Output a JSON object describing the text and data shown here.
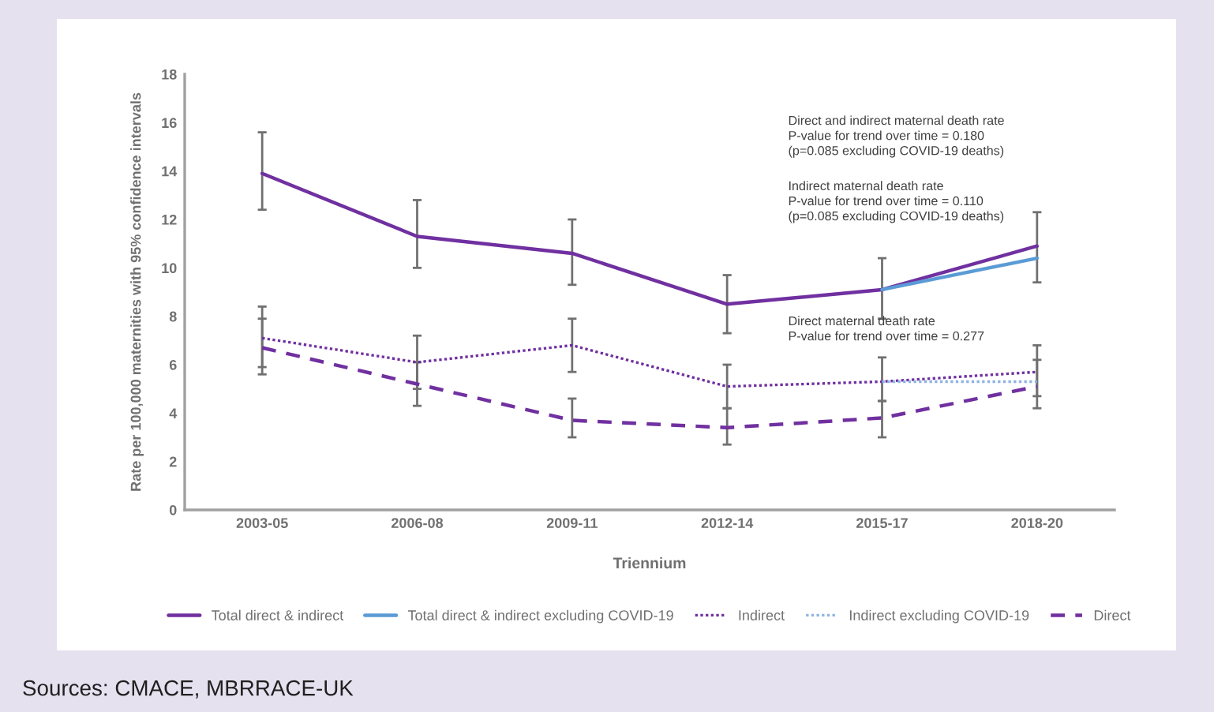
{
  "chart_data": {
    "type": "line",
    "xlabel": "Triennium",
    "ylabel": "Rate per 100,000 maternities with 95% confidence intervals",
    "categories": [
      "2003-05",
      "2006-08",
      "2009-11",
      "2012-14",
      "2015-17",
      "2018-20"
    ],
    "series": [
      {
        "name": "Total direct & indirect",
        "color": "#7030a0",
        "line_style": "solid",
        "values": [
          13.9,
          11.3,
          10.6,
          8.5,
          9.1,
          10.9
        ],
        "errors": [
          [
            12.4,
            15.6
          ],
          [
            10.0,
            12.8
          ],
          [
            9.3,
            12.0
          ],
          [
            7.3,
            9.7
          ],
          [
            7.9,
            10.4
          ],
          [
            9.4,
            12.3
          ]
        ]
      },
      {
        "name": "Total direct & indirect excluding COVID-19",
        "color": "#5b9bd5",
        "line_style": "solid",
        "values": [
          null,
          null,
          null,
          null,
          9.1,
          10.4
        ]
      },
      {
        "name": "Indirect",
        "color": "#7030a0",
        "line_style": "dotted",
        "values": [
          7.1,
          6.1,
          6.8,
          5.1,
          5.3,
          5.7
        ],
        "errors": [
          [
            5.9,
            8.4
          ],
          [
            5.0,
            7.2
          ],
          [
            5.7,
            7.9
          ],
          [
            4.2,
            6.0
          ],
          [
            4.5,
            6.3
          ],
          [
            4.7,
            6.8
          ]
        ]
      },
      {
        "name": "Indirect excluding COVID-19",
        "color": "#8eb4e3",
        "line_style": "dotted",
        "values": [
          null,
          null,
          null,
          null,
          5.3,
          5.3
        ]
      },
      {
        "name": "Direct",
        "color": "#7030a0",
        "line_style": "dashed",
        "values": [
          6.7,
          5.2,
          3.7,
          3.4,
          3.8,
          5.1
        ],
        "errors": [
          [
            5.6,
            7.9
          ],
          [
            4.3,
            6.1
          ],
          [
            3.0,
            4.6
          ],
          [
            2.7,
            4.2
          ],
          [
            3.0,
            4.5
          ],
          [
            4.2,
            6.2
          ]
        ]
      }
    ],
    "ylim": [
      0,
      18
    ],
    "yticks": [
      0,
      2,
      4,
      6,
      8,
      10,
      12,
      14,
      16,
      18
    ],
    "grid": false,
    "legend": "bottom",
    "marker": "none",
    "annotations": [
      "Direct and indirect maternal death rate\nP-value for trend over time = 0.180\n(p=0.085 excluding COVID-19 deaths)",
      "Indirect maternal death rate\nP-value for trend over time = 0.110\n(p=0.085 excluding COVID-19 deaths)",
      "Direct maternal death rate\nP-value for trend over time = 0.277",
      "Sources: CMACE, MBRRACE-UK"
    ]
  }
}
